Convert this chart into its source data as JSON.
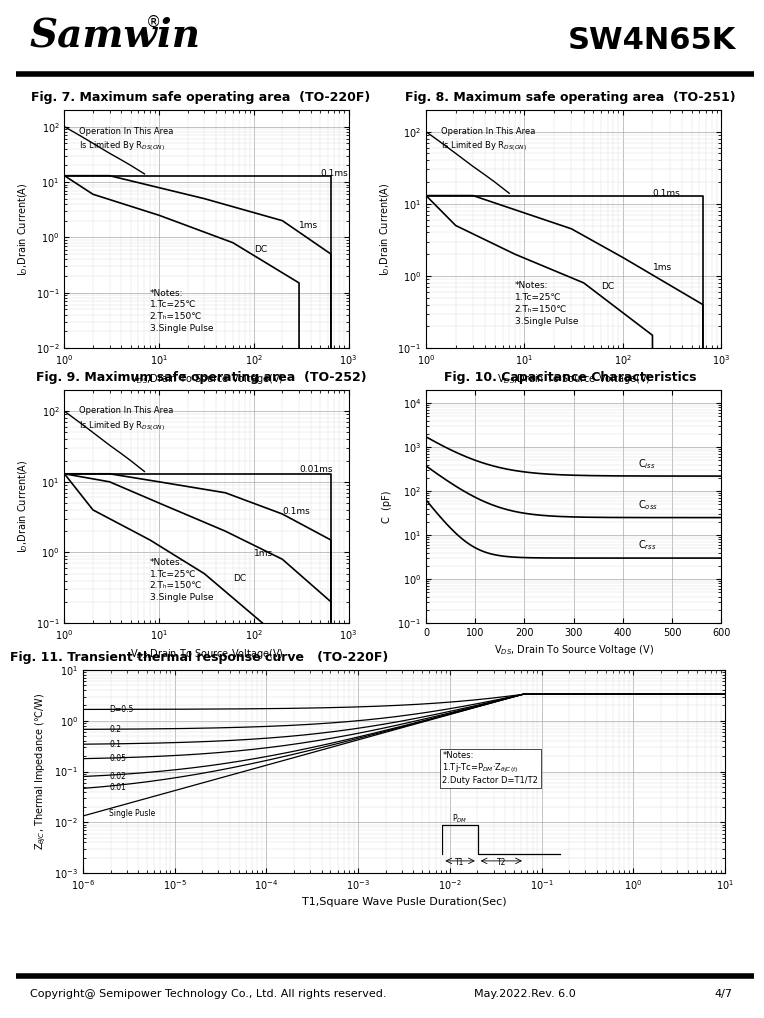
{
  "title_company": "Samwin",
  "title_part": "SW4N65K",
  "fig7_title": "Fig. 7. Maximum safe operating area  (TO-220F)",
  "fig8_title": "Fig. 8. Maximum safe operating area  (TO-251)",
  "fig9_title": "Fig. 9. Maximum safe operating area  (TO-252)",
  "fig10_title": "Fig. 10. Capacitance Characteristics",
  "fig11_title": "Fig. 11. Transient thermal response curve   (TO-220F)",
  "footer_left": "Copyright@ Semipower Technology Co., Ltd. All rights reserved.",
  "footer_mid": "May.2022.Rev. 6.0",
  "footer_right": "4/7",
  "bg_color": "#ffffff",
  "grid_color": "#c0c0c0",
  "line_color": "#000000",
  "soa7": {
    "rds_x": [
      1,
      1.5,
      2,
      3,
      4,
      5,
      7
    ],
    "rds_y": [
      100,
      67,
      50,
      33,
      25,
      20,
      14
    ],
    "c01ms_x": [
      1,
      10,
      100,
      650,
      650
    ],
    "c01ms_y": [
      13,
      13,
      13,
      13,
      0.01
    ],
    "c1ms_x": [
      1,
      3,
      30,
      200,
      650,
      650
    ],
    "c1ms_y": [
      13,
      13,
      5,
      2,
      0.5,
      0.01
    ],
    "cdc_x": [
      1,
      2,
      10,
      60,
      300,
      300
    ],
    "cdc_y": [
      13,
      6,
      2.5,
      0.8,
      0.15,
      0.01
    ],
    "xlim": [
      1,
      1000
    ],
    "ylim": [
      0.01,
      200
    ],
    "xlabel": "V$_{DS}$,Drain To Source Voltage(V)",
    "ylabel": "I$_D$,Drain Current(A)",
    "label_01ms": "0.1ms",
    "label_1ms": "1ms",
    "label_dc": "DC",
    "notes": "*Notes:\n1.Tc=25℃\n2.Tₕ=150℃\n3.Single Pulse",
    "op_text": "Operation In This Area\nIs Limited By R$_{DS(ON)}$"
  },
  "soa8": {
    "rds_x": [
      1,
      1.5,
      2,
      3,
      4,
      5,
      7
    ],
    "rds_y": [
      100,
      67,
      50,
      33,
      25,
      20,
      14
    ],
    "c01ms_x": [
      1,
      10,
      30,
      100,
      650,
      650
    ],
    "c01ms_y": [
      13,
      13,
      13,
      13,
      13,
      0.01
    ],
    "c1ms_x": [
      1,
      3,
      30,
      100,
      650,
      650
    ],
    "c1ms_y": [
      13,
      13,
      4.5,
      1.8,
      0.4,
      0.01
    ],
    "cdc_x": [
      1,
      2,
      8,
      40,
      200,
      200
    ],
    "cdc_y": [
      13,
      5,
      2,
      0.8,
      0.15,
      0.01
    ],
    "xlim": [
      1,
      1000
    ],
    "ylim": [
      0.1,
      200
    ],
    "xlabel": "V$_{DS}$,Drain To Source Voltage(V)",
    "ylabel": "I$_D$,Drain Current(A)",
    "label_01ms": "0.1ms",
    "label_1ms": "1ms",
    "label_dc": "DC",
    "notes": "*Notes:\n1.Tc=25℃\n2.Tₕ=150℃\n3.Single Pulse",
    "op_text": "Operation In This Area\nIs Limited By R$_{DS(ON)}$"
  },
  "soa9": {
    "rds_x": [
      1,
      1.5,
      2,
      3,
      4,
      5,
      7
    ],
    "rds_y": [
      100,
      67,
      50,
      33,
      25,
      20,
      14
    ],
    "c001ms_x": [
      1,
      3,
      10,
      50,
      200,
      650,
      650
    ],
    "c001ms_y": [
      13,
      13,
      13,
      13,
      13,
      13,
      0.01
    ],
    "c01ms_x": [
      1,
      3,
      10,
      50,
      200,
      650,
      650
    ],
    "c01ms_y": [
      13,
      13,
      10,
      7,
      3.5,
      1.5,
      0.01
    ],
    "c1ms_x": [
      1,
      3,
      10,
      50,
      200,
      650,
      650
    ],
    "c1ms_y": [
      13,
      10,
      5,
      2,
      0.8,
      0.2,
      0.01
    ],
    "cdc_x": [
      1,
      2,
      8,
      30,
      150,
      150
    ],
    "cdc_y": [
      13,
      4,
      1.5,
      0.5,
      0.08,
      0.01
    ],
    "xlim": [
      1,
      1000
    ],
    "ylim": [
      0.1,
      200
    ],
    "xlabel": "V$_{DS}$,Drain To Source Voltage(V)",
    "ylabel": "I$_D$,Drain Current(A)",
    "label_001ms": "0.01ms",
    "label_01ms": "0.1ms",
    "label_1ms": "1ms",
    "label_dc": "DC",
    "notes": "*Notes:\n1.Tc=25℃\n2.Tₕ=150℃\n3.Single Pulse",
    "op_text": "Operation In This Area\nIs Limited By R$_{DS(ON)}$"
  },
  "cap10": {
    "xlim": [
      0,
      600
    ],
    "ylim": [
      0.1,
      20000
    ],
    "xlabel": "V$_{DS}$, Drain To Source Voltage (V)",
    "ylabel": "C  (pF)",
    "ciss_a": 1500,
    "ciss_b": 60,
    "ciss_c": 220,
    "coss_a": 350,
    "coss_b": 50,
    "coss_c": 25,
    "crss_a": 60,
    "crss_b": 30,
    "crss_c": 3
  },
  "therm11": {
    "xlim_lo": -6,
    "xlim_hi": 1,
    "ylim_lo": -3,
    "ylim_hi": 1,
    "Rjc": 3.33,
    "tau": 0.08,
    "duties": [
      0.5,
      0.2,
      0.1,
      0.05,
      0.02,
      0.01,
      0
    ],
    "duty_labels": [
      "D=0.5",
      "0.2",
      "0.1",
      "0.05",
      "0.02",
      "0.01",
      "Single Pusle"
    ],
    "xlabel": "T1,Square Wave Pusle Duration(Sec)",
    "ylabel": "Z$_{\\theta JC}$, Thermal Impedance (℃/W)",
    "notes": "*Notes:\n1.Tj-Tc=P$_{DM}$·Z$_{\\theta JC(t)}$\n2.Duty Factor D=T1/T2"
  }
}
